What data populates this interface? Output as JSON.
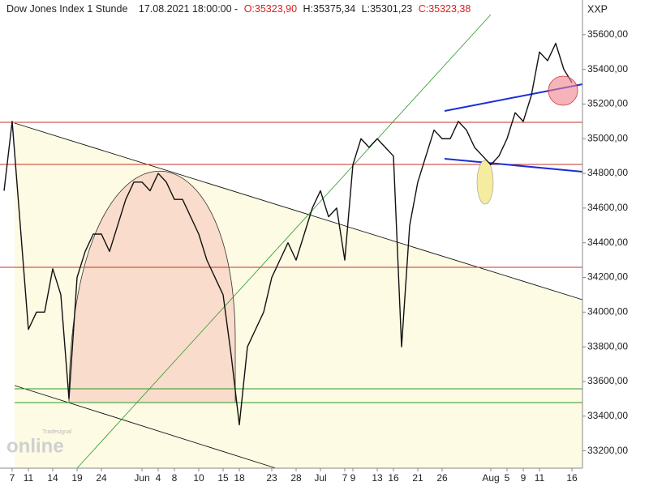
{
  "chart_data": {
    "type": "line",
    "title": "Dow Jones Index 1 Stunde",
    "timestamp": "17.08.2021 18:00:00 -",
    "ohlc_labels": {
      "open": "O:35323,90",
      "high": "H:35375,34",
      "low": "L:35301,23",
      "close": "C:35323,38"
    },
    "symbol": "XXP",
    "watermark": {
      "brand": "Tradesignal",
      "product": "online"
    },
    "color": "#111111",
    "categories": [
      null,
      "7",
      null,
      "11",
      null,
      null,
      "14",
      null,
      null,
      "19",
      null,
      null,
      "24",
      null,
      null,
      null,
      null,
      "Jun",
      null,
      "4",
      null,
      "8",
      null,
      null,
      "10",
      null,
      null,
      "15",
      null,
      "18",
      null,
      null,
      null,
      "23",
      null,
      null,
      "28",
      null,
      null,
      "Jul",
      null,
      null,
      "7",
      "9",
      null,
      null,
      "13",
      null,
      "16",
      null,
      null,
      "21",
      null,
      null,
      "26",
      null,
      null,
      null,
      null,
      null,
      "Aug",
      null,
      "5",
      null,
      "9",
      null,
      "11",
      null,
      null,
      null,
      "16"
    ],
    "values": [
      34700,
      35100,
      34500,
      33900,
      34000,
      34000,
      34250,
      34100,
      33500,
      34200,
      34350,
      34450,
      34450,
      34350,
      34500,
      34650,
      34750,
      34750,
      34700,
      34800,
      34750,
      34650,
      34650,
      34550,
      34450,
      34300,
      34200,
      34100,
      33750,
      33350,
      33800,
      33900,
      34000,
      34200,
      34300,
      34400,
      34300,
      34450,
      34600,
      34700,
      34550,
      34600,
      34300,
      34850,
      35000,
      34950,
      35000,
      34950,
      34900,
      33800,
      34500,
      34750,
      34900,
      35050,
      35000,
      35000,
      35100,
      35050,
      34950,
      34900,
      34850,
      34900,
      35000,
      35150,
      35100,
      35250,
      35500,
      35450,
      35550,
      35400,
      35323.38
    ],
    "ylim": [
      33100,
      35800
    ],
    "yticks": [
      {
        "value": 33200,
        "label": "33200,00"
      },
      {
        "value": 33400,
        "label": "33400,00"
      },
      {
        "value": 33600,
        "label": "33600,00"
      },
      {
        "value": 33800,
        "label": "33800,00"
      },
      {
        "value": 34000,
        "label": "34000,00"
      },
      {
        "value": 34200,
        "label": "34200,00"
      },
      {
        "value": 34400,
        "label": "34400,00"
      },
      {
        "value": 34600,
        "label": "34600,00"
      },
      {
        "value": 34800,
        "label": "34800,00"
      },
      {
        "value": 35000,
        "label": "35000,00"
      },
      {
        "value": 35200,
        "label": "35200,00"
      },
      {
        "value": 35400,
        "label": "35400,00"
      },
      {
        "value": 35600,
        "label": "35600,00"
      }
    ]
  }
}
